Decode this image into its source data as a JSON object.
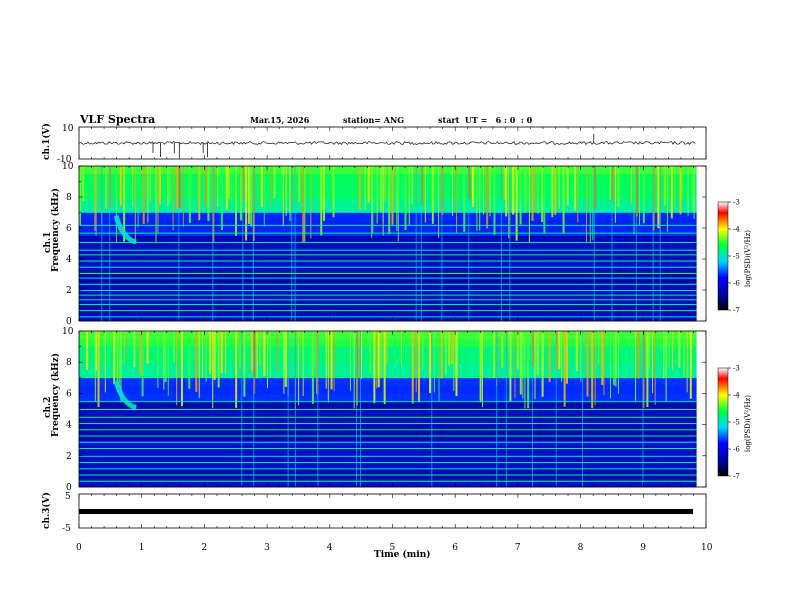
{
  "header": {
    "title": "VLF Spectra",
    "date": "Mar.15, 2026",
    "station": "station= ANG",
    "start": "start  UT =   6 : 0  : 0"
  },
  "colors": {
    "trace": "#111111",
    "colormap": [
      "#000033",
      "#000080",
      "#0000ff",
      "#00ffff",
      "#00ff00",
      "#ffff00",
      "#ff0000",
      "#ffffff"
    ]
  },
  "chart_data": [
    {
      "type": "line",
      "name": "ch1-waveform",
      "ylabel": "ch.1(V)",
      "ylim": [
        -10,
        10
      ],
      "yticks": [
        "10",
        "-10"
      ],
      "xlim": [
        0,
        10
      ],
      "baseline": 0,
      "spikes_min": [
        1.18,
        1.3,
        1.52,
        1.6,
        1.98,
        2.05,
        8.21
      ],
      "x_end": 9.85
    },
    {
      "type": "heatmap",
      "name": "ch1-spectrogram",
      "ylabel": "ch.1\nFrequency (kHz)",
      "ylim": [
        0,
        10
      ],
      "yticks": [
        "0",
        "2",
        "4",
        "6",
        "8",
        "10"
      ],
      "xlim": [
        0,
        10
      ],
      "x_end": 9.85,
      "lines_khz": [
        0.3,
        0.7,
        1.1,
        1.4,
        1.7,
        2.0,
        2.4,
        2.8,
        3.1,
        3.5,
        3.9,
        4.3,
        4.6,
        5.1,
        5.7,
        6.2
      ],
      "whistler_min": 0.72,
      "colorbar": {
        "label": "log(PSD)(V²/Hz)",
        "range": [
          -7,
          -3
        ],
        "ticks": [
          "-3",
          "-4",
          "-5",
          "-6",
          "-7"
        ]
      }
    },
    {
      "type": "heatmap",
      "name": "ch2-spectrogram",
      "ylabel": "ch.2\nFrequency (kHz)",
      "ylim": [
        0,
        10
      ],
      "yticks": [
        "0",
        "2",
        "4",
        "6",
        "8",
        "10"
      ],
      "xlim": [
        0,
        10
      ],
      "x_end": 9.85,
      "lines_khz": [
        0.4,
        0.8,
        1.2,
        1.6,
        2.0,
        2.5,
        2.9,
        3.3,
        3.7,
        4.1,
        4.5,
        5.0,
        5.5
      ],
      "whistler_min": 0.72,
      "colorbar": {
        "label": "log(PSD)(V²/Hz)",
        "range": [
          -7,
          -3
        ],
        "ticks": [
          "-3",
          "-4",
          "-5",
          "-6",
          "-7"
        ]
      }
    },
    {
      "type": "line",
      "name": "ch3-waveform",
      "ylabel": "ch.3(V)",
      "ylim": [
        -5,
        5
      ],
      "yticks": [
        "5",
        "0",
        "-5"
      ],
      "xlim": [
        0,
        10
      ],
      "level": -1.3,
      "x_end": 9.85
    }
  ],
  "xaxis": {
    "label": "Time (min)",
    "ticks": [
      "0",
      "1",
      "2",
      "3",
      "4",
      "5",
      "6",
      "7",
      "8",
      "9",
      "10"
    ]
  }
}
